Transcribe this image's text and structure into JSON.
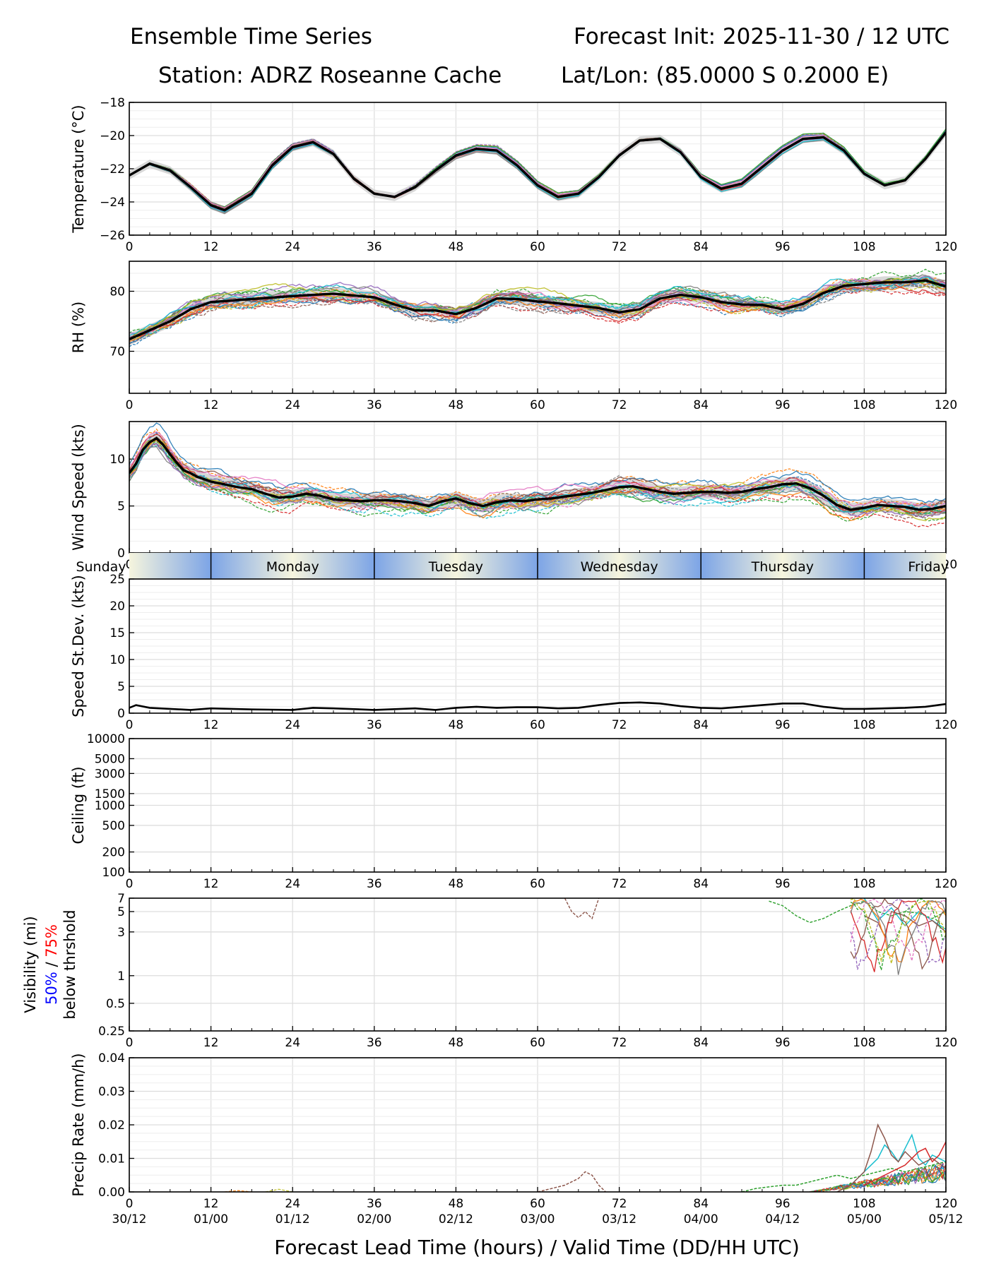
{
  "header": {
    "title_left": "Ensemble Time Series",
    "title_right": "Forecast Init: 2025-11-30 / 12 UTC",
    "station": "Station: ADRZ Roseanne Cache",
    "latlon": "Lat/Lon: (85.0000 S 0.2000 E)"
  },
  "xaxis": {
    "label": "Forecast Lead Time (hours) / Valid Time (DD/HH UTC)",
    "range": [
      0,
      120
    ],
    "ticks": [
      0,
      12,
      24,
      36,
      48,
      60,
      72,
      84,
      96,
      108,
      120
    ],
    "tick_labels": [
      "0",
      "12",
      "24",
      "36",
      "48",
      "60",
      "72",
      "84",
      "96",
      "108",
      "120"
    ],
    "valid_time_labels": [
      "30/12",
      "01/00",
      "01/12",
      "02/00",
      "02/12",
      "03/00",
      "03/12",
      "04/00",
      "04/12",
      "05/00",
      "05/12"
    ]
  },
  "day_band": {
    "days": [
      {
        "label": "Sunday",
        "start": 0,
        "end": 12
      },
      {
        "label": "Monday",
        "start": 12,
        "end": 36
      },
      {
        "label": "Tuesday",
        "start": 36,
        "end": 60
      },
      {
        "label": "Wednesday",
        "start": 60,
        "end": 84
      },
      {
        "label": "Thursday",
        "start": 84,
        "end": 108
      },
      {
        "label": "Friday",
        "start": 108,
        "end": 120
      }
    ],
    "colors": {
      "night": "#7ca4e6",
      "noon": "#f6f5de"
    }
  },
  "colors": {
    "mean": "#000000",
    "band": "#c8c8c8",
    "members": [
      "#1f77b4",
      "#ff7f0e",
      "#2ca02c",
      "#d62728",
      "#9467bd",
      "#8c564b",
      "#e377c2",
      "#7f7f7f",
      "#bcbd22",
      "#17becf"
    ],
    "vis_50": "#0000ff",
    "vis_75": "#ff0000"
  },
  "chart_data": [
    {
      "type": "line",
      "id": "temperature",
      "ylabel": "Temperature (°C)",
      "ylim": [
        -26,
        -18
      ],
      "yticks": [
        -26,
        -24,
        -22,
        -20,
        -18
      ],
      "ytick_labels": [
        "−26",
        "−24",
        "−22",
        "−20",
        "−18"
      ],
      "x": [
        0,
        3,
        6,
        9,
        12,
        14,
        18,
        21,
        24,
        27,
        30,
        33,
        36,
        39,
        42,
        45,
        48,
        51,
        54,
        57,
        60,
        63,
        66,
        69,
        72,
        75,
        78,
        81,
        84,
        87,
        90,
        93,
        96,
        99,
        102,
        105,
        108,
        111,
        114,
        117,
        120
      ],
      "series": [
        {
          "name": "ensemble mean",
          "values": [
            -22.4,
            -21.7,
            -22.1,
            -23.1,
            -24.2,
            -24.5,
            -23.5,
            -21.8,
            -20.7,
            -20.4,
            -21.1,
            -22.6,
            -23.5,
            -23.7,
            -23.1,
            -22.1,
            -21.2,
            -20.8,
            -20.9,
            -21.8,
            -23.0,
            -23.7,
            -23.5,
            -22.5,
            -21.2,
            -20.3,
            -20.2,
            -21.0,
            -22.5,
            -23.2,
            -22.9,
            -21.9,
            -20.9,
            -20.2,
            -20.1,
            -20.9,
            -22.3,
            -23.0,
            -22.7,
            -21.4,
            -19.8
          ]
        }
      ]
    },
    {
      "type": "line",
      "id": "rh",
      "ylabel": "RH (%)",
      "ylim": [
        63,
        85
      ],
      "yticks": [
        70,
        80
      ],
      "ytick_labels": [
        "70",
        "80"
      ],
      "x": [
        0,
        3,
        6,
        9,
        12,
        18,
        24,
        30,
        36,
        39,
        42,
        45,
        48,
        51,
        54,
        57,
        60,
        63,
        66,
        69,
        72,
        75,
        78,
        81,
        84,
        87,
        90,
        93,
        96,
        99,
        102,
        105,
        108,
        111,
        114,
        117,
        120
      ],
      "series": [
        {
          "name": "ensemble mean",
          "values": [
            72.0,
            73.5,
            75.0,
            77.0,
            78.2,
            78.7,
            79.2,
            79.6,
            79.0,
            77.8,
            76.8,
            76.8,
            76.2,
            77.2,
            78.8,
            78.7,
            78.3,
            78.0,
            77.6,
            77.2,
            76.5,
            77.0,
            78.8,
            79.4,
            79.0,
            78.2,
            77.8,
            77.7,
            77.0,
            77.9,
            79.7,
            80.9,
            81.2,
            81.5,
            81.5,
            81.8,
            80.8
          ]
        }
      ]
    },
    {
      "type": "line",
      "id": "wind_speed",
      "ylabel": "Wind Speed (kts)",
      "ylim": [
        0,
        14
      ],
      "yticks": [
        0,
        5,
        10
      ],
      "ytick_labels": [
        "0",
        "5",
        "10"
      ],
      "x": [
        0,
        1,
        2,
        3,
        4,
        5,
        6,
        7,
        8,
        9,
        10,
        12,
        14,
        16,
        18,
        20,
        22,
        24,
        26,
        28,
        30,
        32,
        34,
        36,
        38,
        40,
        42,
        44,
        46,
        48,
        50,
        52,
        54,
        56,
        58,
        60,
        62,
        64,
        66,
        68,
        70,
        72,
        74,
        76,
        78,
        80,
        82,
        84,
        86,
        88,
        90,
        92,
        94,
        96,
        98,
        100,
        102,
        104,
        106,
        108,
        110,
        112,
        114,
        116,
        118,
        120
      ],
      "series": [
        {
          "name": "ensemble mean",
          "values": [
            8.5,
            9.5,
            11.0,
            11.8,
            12.2,
            11.5,
            10.5,
            9.6,
            8.8,
            8.5,
            8.1,
            7.6,
            7.3,
            7.0,
            6.8,
            6.3,
            5.9,
            6.0,
            6.3,
            6.1,
            5.7,
            5.6,
            5.5,
            5.6,
            5.6,
            5.5,
            5.3,
            5.0,
            5.5,
            5.8,
            5.3,
            5.0,
            5.4,
            5.6,
            5.5,
            5.7,
            5.8,
            6.0,
            6.2,
            6.4,
            6.7,
            7.0,
            7.1,
            6.8,
            6.5,
            6.3,
            6.4,
            6.5,
            6.5,
            6.4,
            6.5,
            6.8,
            7.0,
            7.3,
            7.4,
            6.9,
            6.1,
            5.1,
            4.6,
            4.8,
            5.1,
            5.0,
            4.9,
            4.6,
            4.7,
            5.0
          ]
        }
      ]
    },
    {
      "type": "line",
      "id": "speed_stdev",
      "ylabel": "Speed St.Dev. (kts)",
      "ylim": [
        0,
        25
      ],
      "yticks": [
        0,
        5,
        10,
        15,
        20,
        25
      ],
      "ytick_labels": [
        "0",
        "5",
        "10",
        "15",
        "20",
        "25"
      ],
      "x": [
        0,
        1,
        3,
        6,
        9,
        12,
        18,
        24,
        27,
        30,
        36,
        42,
        45,
        48,
        51,
        54,
        57,
        60,
        63,
        66,
        69,
        72,
        75,
        78,
        81,
        84,
        87,
        90,
        93,
        96,
        99,
        102,
        105,
        108,
        111,
        114,
        117,
        120
      ],
      "series": [
        {
          "name": "ensemble std dev",
          "values": [
            1.0,
            1.5,
            1.0,
            0.8,
            0.6,
            0.9,
            0.7,
            0.6,
            1.0,
            0.9,
            0.6,
            0.9,
            0.6,
            1.0,
            1.2,
            1.0,
            1.1,
            1.1,
            0.9,
            1.0,
            1.5,
            1.9,
            2.0,
            1.8,
            1.3,
            1.0,
            0.9,
            1.2,
            1.5,
            1.8,
            1.8,
            1.2,
            0.8,
            0.8,
            0.9,
            1.0,
            1.2,
            1.7
          ]
        }
      ]
    },
    {
      "type": "line",
      "id": "ceiling",
      "ylabel": "Ceiling (ft)",
      "ylim": [
        100,
        10000
      ],
      "yscale": "log",
      "yticks": [
        100,
        200,
        500,
        1000,
        1500,
        3000,
        5000,
        10000
      ],
      "ytick_labels": [
        "100",
        "200",
        "500",
        "1000",
        "1500",
        "3000",
        "5000",
        "10000"
      ],
      "series": []
    },
    {
      "type": "line",
      "id": "visibility",
      "ylabel": "Visibility (mi)",
      "ylabel_line2_a": "50%",
      "ylabel_line2_sep": " / ",
      "ylabel_line2_b": "75%",
      "ylabel_line3": "below thrshold",
      "ylim": [
        0.25,
        7
      ],
      "yscale": "log",
      "yticks": [
        0.25,
        0.5,
        1,
        3,
        5,
        7
      ],
      "ytick_labels": [
        "0.25",
        "0.5",
        "1",
        "3",
        "5",
        "7"
      ],
      "series": [
        {
          "name": "member brown",
          "x": [
            64,
            65,
            66,
            67,
            68,
            69
          ],
          "values": [
            7.0,
            5.0,
            4.3,
            5.0,
            4.2,
            7.0
          ]
        },
        {
          "name": "member green",
          "x": [
            94,
            96,
            98,
            100,
            102,
            104,
            106,
            108,
            110,
            112,
            114,
            116,
            118,
            120
          ],
          "values": [
            6.5,
            5.8,
            4.5,
            3.8,
            4.2,
            5.0,
            5.8,
            6.5,
            5.0,
            4.5,
            5.0,
            4.8,
            4.2,
            5.0
          ]
        },
        {
          "name": "member cyan",
          "x": [
            108,
            110,
            112,
            114,
            116,
            118,
            120
          ],
          "values": [
            7.0,
            4.0,
            5.5,
            3.5,
            5.0,
            4.0,
            3.2
          ]
        },
        {
          "name": "member brown 2",
          "x": [
            108,
            110,
            111,
            112,
            114,
            116,
            118,
            120
          ],
          "values": [
            4.5,
            3.8,
            2.7,
            5.0,
            4.5,
            3.5,
            4.0,
            3.0
          ]
        }
      ]
    },
    {
      "type": "line",
      "id": "precip",
      "ylabel": "Precip Rate (mm/h)",
      "ylim": [
        0,
        0.04
      ],
      "yticks": [
        0,
        0.01,
        0.02,
        0.03,
        0.04
      ],
      "ytick_labels": [
        "0.00",
        "0.01",
        "0.02",
        "0.03",
        "0.04"
      ],
      "series": [
        {
          "name": "member brown",
          "x": [
            60,
            62,
            64,
            66,
            67,
            68,
            69,
            70
          ],
          "values": [
            0.0,
            0.001,
            0.002,
            0.004,
            0.006,
            0.005,
            0.002,
            0.0
          ]
        },
        {
          "name": "member green",
          "x": [
            90,
            92,
            94,
            96,
            98,
            100,
            102,
            104,
            106,
            108,
            110,
            112,
            114,
            116,
            118,
            120
          ],
          "values": [
            0.0,
            0.001,
            0.0015,
            0.002,
            0.002,
            0.003,
            0.004,
            0.005,
            0.004,
            0.005,
            0.006,
            0.007,
            0.006,
            0.007,
            0.008,
            0.009
          ]
        },
        {
          "name": "member cyan",
          "x": [
            104,
            106,
            108,
            110,
            111,
            112,
            113,
            114,
            115,
            116,
            117,
            118,
            120
          ],
          "values": [
            0.0,
            0.002,
            0.006,
            0.01,
            0.014,
            0.012,
            0.009,
            0.013,
            0.017,
            0.01,
            0.008,
            0.011,
            0.009
          ]
        },
        {
          "name": "member brown 2",
          "x": [
            104,
            106,
            108,
            109,
            110,
            111,
            112,
            113,
            114,
            116,
            118,
            120
          ],
          "values": [
            0.0,
            0.002,
            0.006,
            0.012,
            0.02,
            0.016,
            0.011,
            0.009,
            0.012,
            0.008,
            0.01,
            0.007
          ]
        },
        {
          "name": "member red",
          "x": [
            108,
            110,
            112,
            114,
            116,
            117,
            118,
            119,
            120
          ],
          "values": [
            0.002,
            0.004,
            0.006,
            0.008,
            0.012,
            0.013,
            0.009,
            0.011,
            0.015
          ]
        }
      ]
    }
  ]
}
